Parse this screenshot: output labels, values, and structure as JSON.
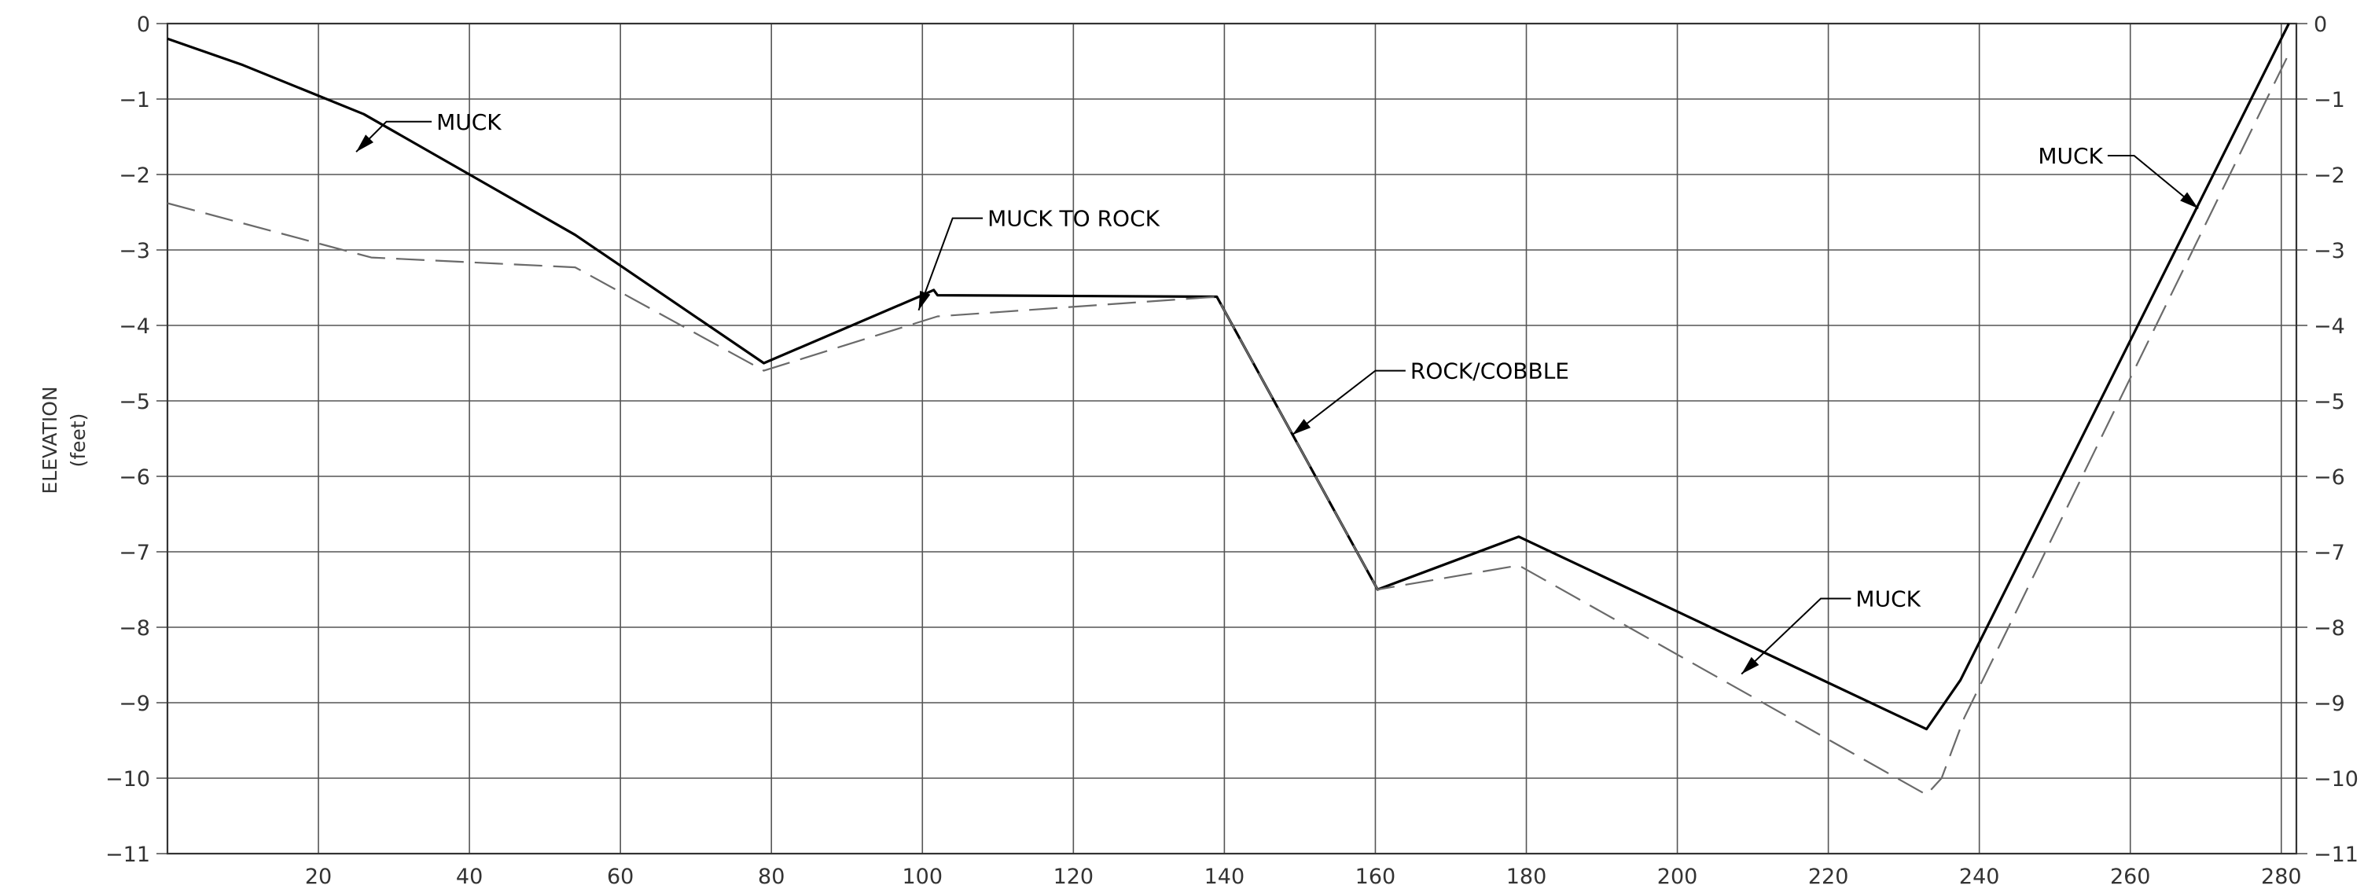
{
  "chart_data": {
    "type": "line",
    "ylabel": "ELEVATION",
    "ylabel_unit": "(feet)",
    "xlim": [
      0,
      282
    ],
    "ylim": [
      -11,
      0
    ],
    "x_ticks": [
      20,
      40,
      60,
      80,
      100,
      120,
      140,
      160,
      180,
      200,
      220,
      240,
      260,
      280
    ],
    "y_ticks": [
      0,
      -1,
      -2,
      -3,
      -4,
      -5,
      -6,
      -7,
      -8,
      -9,
      -10,
      -11
    ],
    "grid": true,
    "series": [
      {
        "style": "solid",
        "color": "#000000",
        "points": [
          [
            0,
            -0.2
          ],
          [
            10,
            -0.55
          ],
          [
            26,
            -1.2
          ],
          [
            54,
            -2.8
          ],
          [
            79,
            -4.5
          ],
          [
            100,
            -3.6
          ],
          [
            101.5,
            -3.53
          ],
          [
            102,
            -3.6
          ],
          [
            139,
            -3.62
          ],
          [
            160.3,
            -7.5
          ],
          [
            179,
            -6.8
          ],
          [
            233,
            -9.35
          ],
          [
            237.5,
            -8.7
          ],
          [
            281,
            0
          ]
        ]
      },
      {
        "style": "dashed",
        "color": "#6a6a6a",
        "points": [
          [
            0,
            -2.38
          ],
          [
            27,
            -3.1
          ],
          [
            54,
            -3.23
          ],
          [
            79,
            -4.6
          ],
          [
            102,
            -3.88
          ],
          [
            139,
            -3.62
          ],
          [
            160.3,
            -7.5
          ],
          [
            179,
            -7.18
          ],
          [
            233,
            -10.22
          ],
          [
            235,
            -10.0
          ],
          [
            238,
            -9.2
          ],
          [
            281,
            -0.4
          ]
        ]
      }
    ],
    "annotations": [
      {
        "text": "MUCK",
        "point": [
          25,
          -1.7
        ],
        "elbow": [
          29,
          -1.3
        ],
        "label_at": [
          35,
          -1.3
        ]
      },
      {
        "text": "MUCK TO ROCK",
        "point": [
          99.5,
          -3.8
        ],
        "elbow": [
          104,
          -2.58
        ],
        "label_at": [
          108,
          -2.58
        ]
      },
      {
        "text": "ROCK/COBBLE",
        "point": [
          149,
          -5.45
        ],
        "elbow": [
          160,
          -4.6
        ],
        "label_at": [
          164,
          -4.6
        ]
      },
      {
        "text": "MUCK",
        "point": [
          208.5,
          -8.62
        ],
        "elbow": [
          219,
          -7.62
        ],
        "label_at": [
          223,
          -7.62
        ]
      },
      {
        "text": "MUCK",
        "point": [
          269,
          -2.45
        ],
        "elbow": [
          260.5,
          -1.75
        ],
        "label_at": [
          257,
          -1.75
        ]
      }
    ]
  }
}
